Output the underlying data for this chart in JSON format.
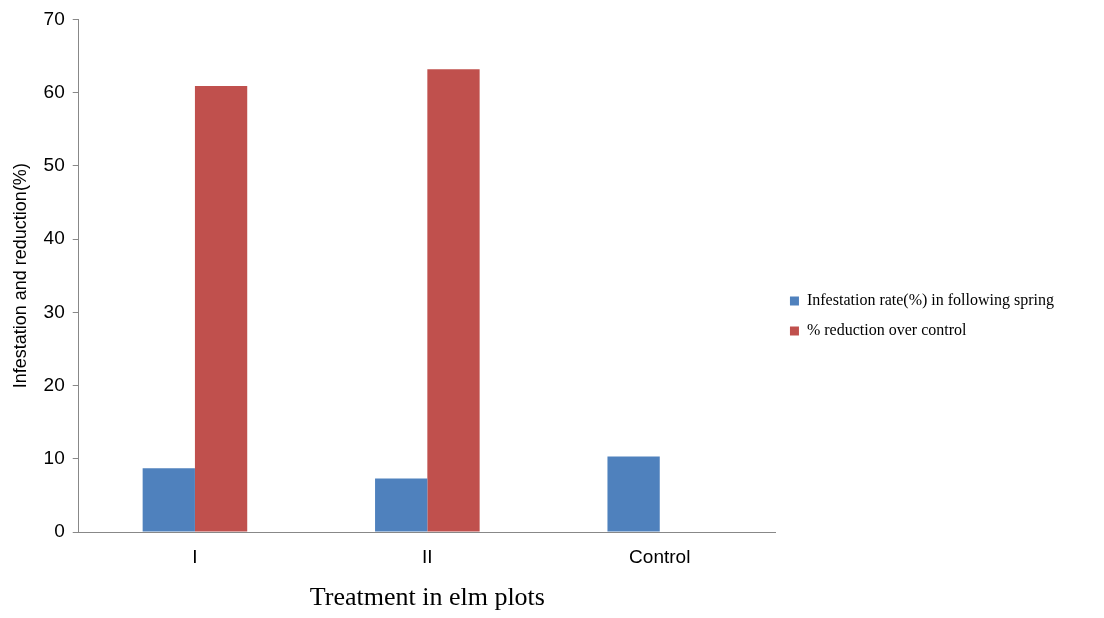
{
  "chart_data": {
    "type": "bar",
    "xlabel": "Treatment in elm plots",
    "ylabel": "Infestation and reduction(%)",
    "categories": [
      "I",
      "II",
      "Control"
    ],
    "series": [
      {
        "name": "Infestation rate(%) in following spring",
        "color": "#4f81bd",
        "values": [
          8.7,
          7.3,
          10.3
        ]
      },
      {
        "name": "% reduction over control",
        "color": "#c0504d",
        "values": [
          60.9,
          63.2,
          0
        ]
      }
    ],
    "ylim": [
      0,
      70
    ],
    "yticks": [
      0,
      10,
      20,
      30,
      40,
      50,
      60,
      70
    ],
    "grid": false,
    "legend": "right"
  }
}
